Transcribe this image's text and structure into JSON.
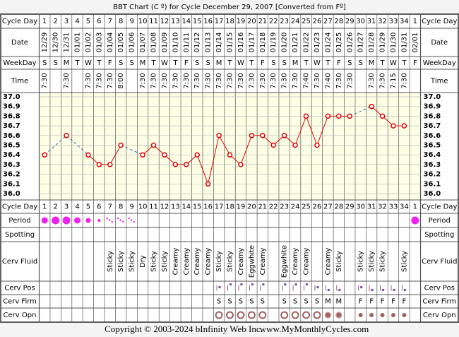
{
  "chart_data": {
    "type": "line",
    "title": "BBT Chart (C º) for Cycle December 29, 2007  [Converted from Fº]",
    "row_labels": {
      "cycle_day": "Cycle Day",
      "date": "Date",
      "weekday": "WeekDay",
      "time": "Time",
      "period": "Period",
      "spotting": "Spotting",
      "cerv_fluid": "Cerv Fluid",
      "cerv_pos": "Cerv Pos",
      "cerv_firm": "Cerv Firm",
      "cerv_opn": "Cerv Opn"
    },
    "cycle_days": [
      1,
      2,
      3,
      4,
      5,
      6,
      7,
      8,
      9,
      10,
      11,
      12,
      13,
      14,
      15,
      16,
      17,
      18,
      19,
      20,
      21,
      22,
      23,
      24,
      25,
      26,
      27,
      28,
      29,
      30,
      31,
      32,
      33,
      34,
      1
    ],
    "categories": [
      "12/29",
      "12/30",
      "12/31",
      "01/01",
      "01/02",
      "01/03",
      "01/04",
      "01/05",
      "01/06",
      "01/07",
      "01/08",
      "01/09",
      "01/10",
      "01/11",
      "01/12",
      "01/13",
      "01/14",
      "01/15",
      "01/16",
      "01/17",
      "01/18",
      "01/19",
      "01/20",
      "01/21",
      "01/22",
      "01/23",
      "01/24",
      "01/25",
      "01/26",
      "01/27",
      "01/28",
      "01/29",
      "01/30",
      "01/31",
      "02/01"
    ],
    "weekdays": [
      "S",
      "S",
      "M",
      "T",
      "W",
      "T",
      "F",
      "S",
      "S",
      "M",
      "T",
      "W",
      "T",
      "F",
      "S",
      "S",
      "M",
      "T",
      "W",
      "T",
      "F",
      "S",
      "S",
      "M",
      "T",
      "W",
      "T",
      "F",
      "S",
      "S",
      "M",
      "T",
      "W",
      "T",
      "F"
    ],
    "times": [
      "7:30",
      null,
      "7:30",
      null,
      "7:30",
      "7:30",
      "7:30",
      "8:00",
      null,
      "7:30",
      "7:30",
      "7:30",
      "7:30",
      "7:30",
      "7:30",
      "7:30",
      "7:30",
      "7:30",
      "7:30",
      "7:30",
      "7:30",
      "7:30",
      "7:30",
      "7:30",
      "7:40",
      "7:30",
      "7:40",
      "7:30",
      "7:30",
      null,
      "7:30",
      "7:30",
      "7:15",
      "7:30",
      null
    ],
    "values": [
      36.4,
      null,
      36.6,
      null,
      36.4,
      36.3,
      36.3,
      36.5,
      null,
      36.4,
      36.5,
      36.4,
      36.3,
      36.3,
      36.4,
      36.1,
      36.6,
      36.4,
      36.3,
      36.6,
      36.6,
      36.5,
      36.6,
      36.5,
      36.8,
      36.5,
      36.8,
      36.8,
      36.8,
      null,
      36.9,
      36.8,
      36.7,
      36.7,
      null
    ],
    "color": "#e00000",
    "gap_color": "#3366cc",
    "ylim": [
      36,
      37
    ],
    "yticks": [
      {
        "value": 37,
        "label": "37.0"
      },
      36.9,
      36.8,
      36.7,
      36.6,
      36.5,
      36.4,
      36.3,
      36.2,
      36.1,
      {
        "value": 36,
        "label": "36.0"
      }
    ],
    "grid": true,
    "period": [
      "medium",
      "heavy",
      "heavy",
      "medium",
      "light",
      "spotting",
      "brown",
      "brown",
      "brown",
      null,
      null,
      null,
      null,
      null,
      null,
      null,
      null,
      null,
      null,
      null,
      null,
      null,
      null,
      null,
      null,
      null,
      null,
      null,
      null,
      null,
      null,
      null,
      null,
      null,
      "heavy"
    ],
    "period_color": "#ee22ee",
    "cerv_fluid": [
      null,
      null,
      null,
      null,
      null,
      null,
      "Sticky",
      "Sticky",
      "Sticky",
      "Dry",
      "Sticky",
      "Sticky",
      "Creamy",
      "Creamy",
      "Creamy",
      "Creamy",
      "Sticky",
      "Sticky",
      "Creamy",
      "Eggwhite",
      "Creamy",
      null,
      "Eggwhite",
      "Creamy",
      "Creamy",
      null,
      "Creamy",
      "Sticky",
      null,
      "Sticky",
      "Sticky",
      "Sticky",
      null,
      "Sticky",
      null
    ],
    "cerv_pos": [
      null,
      null,
      null,
      null,
      null,
      null,
      null,
      null,
      null,
      null,
      null,
      null,
      null,
      null,
      null,
      null,
      "medium",
      "high",
      "high",
      "high",
      "high",
      null,
      "high",
      "high",
      "high",
      "medium",
      "low",
      "low",
      null,
      "medium",
      "low",
      "low",
      "low",
      "low",
      null
    ],
    "cerv_firm": [
      null,
      null,
      null,
      null,
      null,
      null,
      null,
      null,
      null,
      null,
      null,
      null,
      null,
      null,
      null,
      null,
      "S",
      "S",
      "S",
      "S",
      "S",
      null,
      "S",
      "S",
      "S",
      "S",
      "M",
      "M",
      null,
      "F",
      "F",
      "F",
      "F",
      "F",
      null
    ],
    "cerv_opn": [
      null,
      null,
      null,
      null,
      null,
      null,
      null,
      null,
      null,
      null,
      null,
      null,
      null,
      null,
      null,
      null,
      "open",
      "open",
      "open",
      "open",
      "open",
      null,
      "open",
      "open",
      "open",
      "open",
      "medium",
      "medium",
      null,
      "closed",
      "closed",
      "closed",
      "closed",
      "closed",
      null
    ],
    "marker_color": "#a06060"
  },
  "footer": {
    "copyright": "Copyright © 2003-2024 bInfinity Web Inc.",
    "site": "www.MyMonthlyCycles.com"
  }
}
